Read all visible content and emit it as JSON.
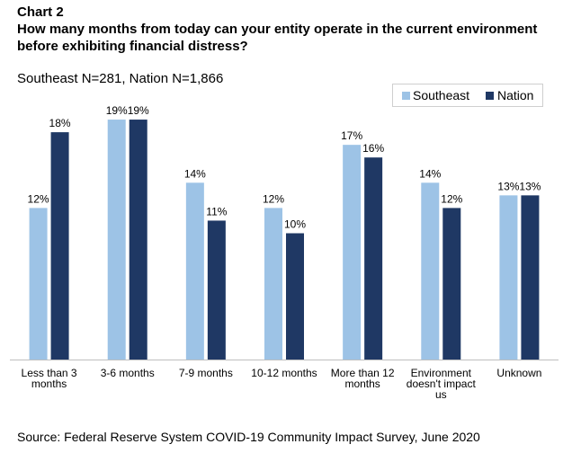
{
  "header": {
    "chart_label": "Chart 2",
    "title": "How many months from today can your entity operate in the current environment before exhibiting financial distress?",
    "subtitle": "Southeast N=281, Nation N=1,866"
  },
  "source": "Source: Federal Reserve System COVID-19 Community Impact Survey, June 2020",
  "chart_data": {
    "type": "bar",
    "categories": [
      "Less than 3 months",
      "3-6 months",
      "7-9 months",
      "10-12 months",
      "More than 12 months",
      "Environment doesn't impact us",
      "Unknown"
    ],
    "category_lines": [
      [
        "Less than 3",
        "months"
      ],
      [
        "3-6 months"
      ],
      [
        "7-9 months"
      ],
      [
        "10-12 months"
      ],
      [
        "More than 12",
        "months"
      ],
      [
        "Environment",
        "doesn't impact",
        "us"
      ],
      [
        "Unknown"
      ]
    ],
    "series": [
      {
        "name": "Southeast",
        "color": "#9dc3e6",
        "values": [
          12,
          19,
          14,
          12,
          17,
          14,
          13
        ],
        "labels": [
          "12%",
          "19%",
          "14%",
          "12%",
          "17%",
          "14%",
          "13%"
        ]
      },
      {
        "name": "Nation",
        "color": "#1f3864",
        "values": [
          18,
          19,
          11,
          10,
          16,
          12,
          13
        ],
        "labels": [
          "18%",
          "19%",
          "11%",
          "10%",
          "16%",
          "12%",
          "13%"
        ]
      }
    ],
    "ylim": [
      0,
      20
    ],
    "grid": false,
    "legend": "top-right"
  }
}
